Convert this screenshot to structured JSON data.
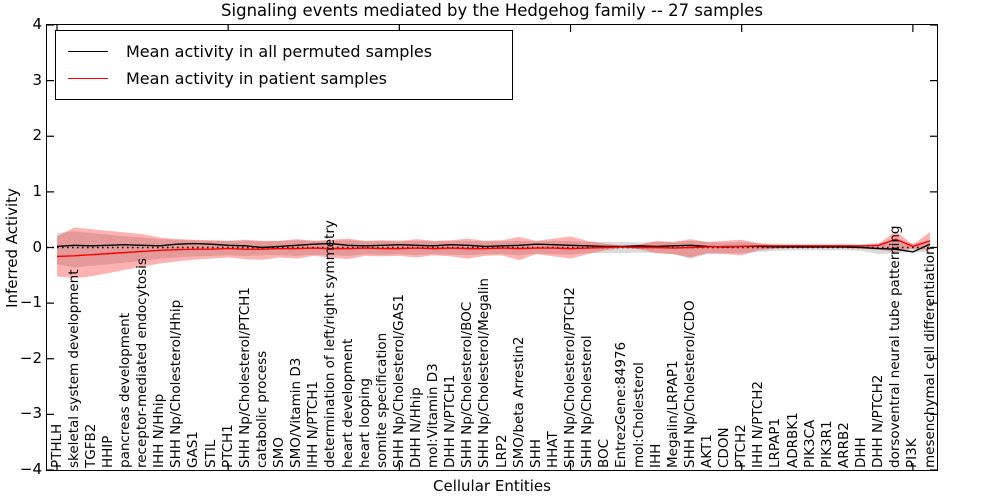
{
  "title": "Signaling events mediated by the Hedgehog family -- 27 samples",
  "legend": {
    "items": [
      {
        "label": "Mean activity in all permuted samples",
        "color": "#000000"
      },
      {
        "label": "Mean activity in patient samples",
        "color": "#ff0000"
      }
    ]
  },
  "chart_data": {
    "type": "line",
    "title": "Signaling events mediated by the Hedgehog family -- 27 samples",
    "xlabel": "Cellular Entities",
    "ylabel": "Inferred Activity",
    "ylim": [
      -4,
      4
    ],
    "yticks": [
      4,
      3,
      2,
      1,
      0,
      -1,
      -2,
      -3,
      -4
    ],
    "grid": false,
    "legend_position": "upper left",
    "zero_line": 0,
    "categories": [
      "PTHLH",
      "skeletal system development",
      "TGFB2",
      "HHIP",
      "pancreas development",
      "receptor-mediated endocytosis",
      "IHH N/Hhip",
      "SHH Np/Cholesterol/Hhip",
      "GAS1",
      "STIL",
      "PTCH1",
      "SHH Np/Cholesterol/PTCH1",
      "catabolic process",
      "SMO",
      "SMO/Vitamin D3",
      "IHH N/PTCH1",
      "determination of left/right symmetry",
      "heart development",
      "heart looping",
      "somite specification",
      "SHH Np/Cholesterol/GAS1",
      "DHH N/Hhip",
      "mol:Vitamin D3",
      "DHH N/PTCH1",
      "SHH Np/Cholesterol/BOC",
      "SHH Np/Cholesterol/Megalin",
      "LRP2",
      "SMO/beta Arrestin2",
      "SHH",
      "HHAT",
      "SHH Np/Cholesterol/PTCH2",
      "SHH Np/Cholesterol",
      "BOC",
      "EntrezGene:84976",
      "mol:Cholesterol",
      "IHH",
      "Megalin/LRPAP1",
      "SHH Np/Cholesterol/CDO",
      "AKT1",
      "CDON",
      "PTCH2",
      "IHH N/PTCH2",
      "LRPAP1",
      "ADRBK1",
      "PIK3CA",
      "PIK3R1",
      "ARRB2",
      "DHH",
      "DHH N/PTCH2",
      "dorsoventral neural tube patterning",
      "PI3K",
      "mesenchymal cell differentiation"
    ],
    "series": [
      {
        "name": "Mean activity in all permuted samples",
        "color": "#000000",
        "values": [
          0.02,
          0.04,
          0.03,
          0.04,
          0.05,
          0.04,
          0.03,
          0.06,
          0.07,
          0.06,
          0.04,
          0.03,
          0.0,
          0.02,
          0.04,
          0.06,
          0.07,
          0.04,
          0.03,
          0.04,
          0.05,
          0.04,
          0.03,
          0.05,
          0.04,
          0.02,
          0.03,
          0.04,
          0.06,
          0.05,
          0.04,
          0.03,
          0.02,
          0.02,
          0.03,
          0.02,
          0.03,
          0.04,
          0.02,
          0.01,
          0.02,
          0.02,
          0.01,
          0.01,
          0.01,
          0.01,
          0.01,
          0.0,
          -0.02,
          -0.03,
          -0.08,
          0.06
        ]
      },
      {
        "name": "Mean activity in patient samples",
        "color": "#ff0000",
        "values": [
          -0.16,
          -0.15,
          -0.13,
          -0.11,
          -0.09,
          -0.07,
          -0.05,
          -0.04,
          -0.03,
          -0.03,
          -0.02,
          -0.03,
          -0.03,
          -0.02,
          -0.02,
          -0.01,
          -0.02,
          -0.02,
          -0.01,
          -0.02,
          -0.02,
          -0.01,
          -0.02,
          -0.01,
          -0.02,
          -0.02,
          -0.01,
          -0.02,
          -0.01,
          -0.01,
          -0.02,
          -0.01,
          0.0,
          0.01,
          0.0,
          0.0,
          -0.01,
          0.0,
          0.01,
          0.02,
          0.02,
          0.03,
          0.03,
          0.03,
          0.03,
          0.03,
          0.03,
          0.03,
          0.04,
          0.15,
          0.02,
          0.12
        ]
      }
    ],
    "bands": [
      {
        "name": "permuted samples range",
        "color": "#999999",
        "opacity": 0.35,
        "upper": [
          0.26,
          0.29,
          0.26,
          0.23,
          0.2,
          0.18,
          0.15,
          0.14,
          0.13,
          0.12,
          0.12,
          0.12,
          0.11,
          0.12,
          0.13,
          0.12,
          0.12,
          0.13,
          0.11,
          0.12,
          0.11,
          0.12,
          0.11,
          0.12,
          0.12,
          0.11,
          0.11,
          0.12,
          0.11,
          0.12,
          0.12,
          0.1,
          0.1,
          0.1,
          0.09,
          0.1,
          0.1,
          0.12,
          0.1,
          0.09,
          0.1,
          0.08,
          0.07,
          0.06,
          0.06,
          0.06,
          0.06,
          0.06,
          0.09,
          0.12,
          0.08,
          0.1
        ],
        "lower": [
          -0.3,
          -0.36,
          -0.33,
          -0.3,
          -0.27,
          -0.24,
          -0.2,
          -0.18,
          -0.16,
          -0.15,
          -0.14,
          -0.15,
          -0.14,
          -0.14,
          -0.15,
          -0.13,
          -0.14,
          -0.15,
          -0.12,
          -0.13,
          -0.12,
          -0.14,
          -0.12,
          -0.13,
          -0.14,
          -0.12,
          -0.12,
          -0.14,
          -0.11,
          -0.12,
          -0.13,
          -0.1,
          -0.1,
          -0.1,
          -0.09,
          -0.1,
          -0.12,
          -0.2,
          -0.12,
          -0.1,
          -0.1,
          -0.08,
          -0.06,
          -0.05,
          -0.05,
          -0.05,
          -0.05,
          -0.06,
          -0.12,
          -0.1,
          -0.08,
          -0.08
        ]
      },
      {
        "name": "patient samples range",
        "color": "#ff0000",
        "opacity": 0.3,
        "upper": [
          0.2,
          0.36,
          0.33,
          0.3,
          0.27,
          0.24,
          0.18,
          0.15,
          0.14,
          0.13,
          0.12,
          0.14,
          0.12,
          0.12,
          0.15,
          0.12,
          0.14,
          0.16,
          0.12,
          0.13,
          0.12,
          0.15,
          0.12,
          0.13,
          0.16,
          0.12,
          0.13,
          0.19,
          0.12,
          0.16,
          0.2,
          0.12,
          0.07,
          0.03,
          0.05,
          0.12,
          0.1,
          0.15,
          0.1,
          0.12,
          0.14,
          0.07,
          0.04,
          0.04,
          0.04,
          0.04,
          0.04,
          0.04,
          0.06,
          0.3,
          0.05,
          0.28
        ],
        "lower": [
          -0.52,
          -0.55,
          -0.52,
          -0.46,
          -0.4,
          -0.34,
          -0.29,
          -0.25,
          -0.22,
          -0.2,
          -0.18,
          -0.21,
          -0.22,
          -0.18,
          -0.2,
          -0.15,
          -0.18,
          -0.21,
          -0.15,
          -0.16,
          -0.15,
          -0.18,
          -0.14,
          -0.16,
          -0.2,
          -0.15,
          -0.14,
          -0.23,
          -0.12,
          -0.16,
          -0.2,
          -0.12,
          -0.05,
          -0.01,
          -0.03,
          -0.1,
          -0.12,
          -0.18,
          -0.1,
          -0.12,
          -0.14,
          -0.05,
          -0.02,
          -0.01,
          -0.01,
          -0.01,
          -0.01,
          -0.02,
          -0.04,
          -0.08,
          -0.02,
          -0.05
        ]
      }
    ]
  }
}
